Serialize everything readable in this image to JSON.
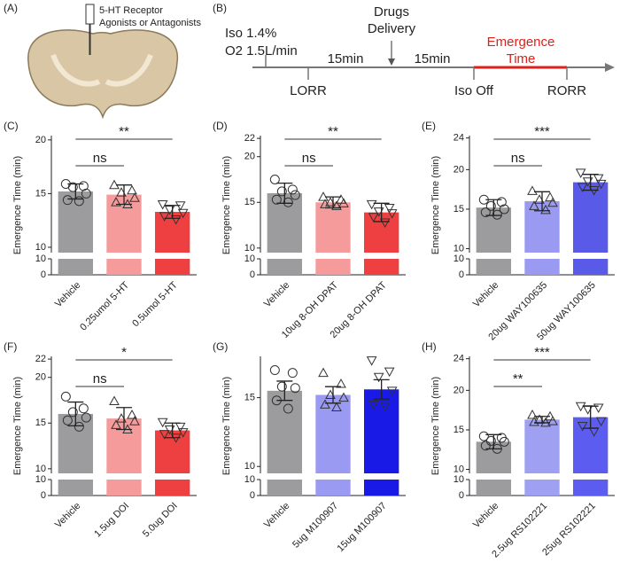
{
  "panel_a": {
    "label": "(A)",
    "caption_line1": "5-HT Receptor",
    "caption_line2": "Agonists or Antagonists"
  },
  "panel_b": {
    "label": "(B)",
    "iso_line1": "Iso 1.4%",
    "iso_line2": "O2 1.5L/min",
    "drugs_line1": "Drugs",
    "drugs_line2": "Delivery",
    "interval1": "15min",
    "interval2": "15min",
    "emergence_line1": "Emergence",
    "emergence_line2": "Time",
    "lorr": "LORR",
    "iso_off": "Iso Off",
    "rorr": "RORR"
  },
  "chart_data": [
    {
      "type": "bar",
      "label": "(C)",
      "ylabel": "Emergence Time (min)",
      "categories": [
        "Vehicle",
        "0.25umol 5-HT",
        "0.5umol 5-HT"
      ],
      "values": [
        15.2,
        14.9,
        13.3
      ],
      "errors": [
        0.7,
        0.9,
        0.6
      ],
      "colors": [
        "#9c9c9e",
        "#f59b9b",
        "#ee4040"
      ],
      "markers": [
        "circle",
        "triangle-up",
        "triangle-down"
      ],
      "points": [
        [
          15.9,
          15.7,
          15.6,
          15.0,
          14.4,
          14.3
        ],
        [
          15.8,
          15.3,
          15.1,
          14.6,
          14.2,
          14.0
        ],
        [
          14.0,
          13.9,
          13.5,
          13.2,
          12.9,
          12.6
        ]
      ],
      "ylim": [
        9.5,
        20.4
      ],
      "yticks": [
        10,
        15,
        20
      ],
      "ylim_lower": [
        0,
        10
      ],
      "yticks_lower": [
        0,
        10
      ],
      "comparisons": [
        {
          "groups": [
            0,
            1
          ],
          "label": "ns"
        },
        {
          "groups": [
            0,
            2
          ],
          "label": "**"
        }
      ]
    },
    {
      "type": "bar",
      "label": "(D)",
      "ylabel": "Emergence Time (min)",
      "categories": [
        "Vehicle",
        "10ug 8-OH DPAT",
        "20ug 8-OH DPAT"
      ],
      "values": [
        16.0,
        15.0,
        13.9
      ],
      "errors": [
        1.1,
        0.6,
        1.0
      ],
      "colors": [
        "#9c9c9e",
        "#f59b9b",
        "#ee4040"
      ],
      "markers": [
        "circle",
        "triangle-up",
        "triangle-down"
      ],
      "points": [
        [
          17.5,
          16.4,
          16.2,
          15.8,
          15.3,
          15.0
        ],
        [
          15.6,
          15.3,
          15.0,
          14.9,
          14.8,
          14.6
        ],
        [
          14.8,
          14.4,
          14.0,
          13.8,
          13.4,
          12.8
        ]
      ],
      "ylim": [
        9.5,
        22.3
      ],
      "yticks": [
        10,
        15,
        20,
        22
      ],
      "ylim_lower": [
        0,
        10
      ],
      "yticks_lower": [
        0,
        10
      ],
      "comparisons": [
        {
          "groups": [
            0,
            1
          ],
          "label": "ns"
        },
        {
          "groups": [
            0,
            2
          ],
          "label": "**"
        }
      ]
    },
    {
      "type": "bar",
      "label": "(E)",
      "ylabel": "Emergence Time (min)",
      "categories": [
        "Vehicle",
        "20ug WAY100635",
        "50ug WAY100635"
      ],
      "values": [
        15.2,
        16.0,
        18.4
      ],
      "errors": [
        1.0,
        1.2,
        1.0
      ],
      "colors": [
        "#9c9c9e",
        "#9a9af2",
        "#5a5ae8"
      ],
      "markers": [
        "circle",
        "triangle-up",
        "triangle-down"
      ],
      "points": [
        [
          16.2,
          15.9,
          15.4,
          15.0,
          14.6,
          14.3
        ],
        [
          17.3,
          16.5,
          16.2,
          15.8,
          15.4,
          14.9
        ],
        [
          19.6,
          18.9,
          18.5,
          18.2,
          17.8,
          17.4
        ]
      ],
      "ylim": [
        9.5,
        24.3
      ],
      "yticks": [
        10,
        15,
        20,
        24
      ],
      "ylim_lower": [
        0,
        10
      ],
      "yticks_lower": [
        0,
        10
      ],
      "comparisons": [
        {
          "groups": [
            0,
            1
          ],
          "label": "ns"
        },
        {
          "groups": [
            0,
            2
          ],
          "label": "***"
        }
      ]
    },
    {
      "type": "bar",
      "label": "(F)",
      "ylabel": "Emergence Time (min)",
      "categories": [
        "Vehicle",
        "1.5ug DOI",
        "5.0ug DOI"
      ],
      "values": [
        16.0,
        15.5,
        14.2
      ],
      "errors": [
        1.3,
        1.2,
        0.8
      ],
      "colors": [
        "#9c9c9e",
        "#f59b9b",
        "#ee4040"
      ],
      "markers": [
        "circle",
        "triangle-up",
        "triangle-down"
      ],
      "points": [
        [
          17.9,
          16.6,
          16.2,
          15.6,
          15.3,
          14.6
        ],
        [
          17.4,
          15.9,
          15.5,
          15.2,
          14.8,
          14.3
        ],
        [
          15.1,
          14.6,
          14.3,
          14.0,
          13.8,
          13.4
        ]
      ],
      "ylim": [
        9.5,
        22.3
      ],
      "yticks": [
        10,
        15,
        20,
        22
      ],
      "ylim_lower": [
        0,
        10
      ],
      "yticks_lower": [
        0,
        10
      ],
      "comparisons": [
        {
          "groups": [
            0,
            1
          ],
          "label": "ns"
        },
        {
          "groups": [
            0,
            2
          ],
          "label": "*"
        }
      ]
    },
    {
      "type": "bar",
      "label": "(G)",
      "ylabel": "Emergence Time (min)",
      "categories": [
        "Vehicle",
        "5ug M100907",
        "15ug M100907"
      ],
      "values": [
        15.5,
        15.2,
        15.6
      ],
      "errors": [
        0.7,
        0.6,
        0.7
      ],
      "colors": [
        "#9c9c9e",
        "#9a9af2",
        "#1a1ae6"
      ],
      "markers": [
        "circle",
        "triangle-up",
        "triangle-down"
      ],
      "points": [
        [
          17.0,
          16.8,
          15.8,
          15.7,
          14.8,
          14.2
        ],
        [
          16.8,
          16.0,
          15.2,
          15.0,
          14.5,
          14.3
        ],
        [
          17.7,
          16.9,
          16.5,
          15.5,
          14.5,
          14.4
        ]
      ],
      "ylim": [
        9.5,
        18
      ],
      "yticks": [
        10,
        15
      ],
      "ylim_lower": [
        0,
        10
      ],
      "yticks_lower": [
        0,
        10
      ],
      "comparisons": []
    },
    {
      "type": "bar",
      "label": "(H)",
      "ylabel": "Emergence Time (min)",
      "categories": [
        "Vehicle",
        "2.5ug RS102221",
        "25ug RS102221"
      ],
      "values": [
        13.5,
        16.3,
        16.6
      ],
      "errors": [
        0.9,
        0.4,
        1.4
      ],
      "colors": [
        "#9c9c9e",
        "#a0a0f2",
        "#5c5cf0"
      ],
      "markers": [
        "circle",
        "triangle-up",
        "triangle-down"
      ],
      "points": [
        [
          14.2,
          14.0,
          13.6,
          13.5,
          13.0,
          12.6
        ],
        [
          16.9,
          16.7,
          16.3,
          16.1,
          16.0,
          15.9
        ],
        [
          18.0,
          17.8,
          17.6,
          16.1,
          15.5,
          14.8
        ]
      ],
      "ylim": [
        9.5,
        24.3
      ],
      "yticks": [
        10,
        15,
        20,
        24
      ],
      "ylim_lower": [
        0,
        10
      ],
      "yticks_lower": [
        0,
        10
      ],
      "comparisons": [
        {
          "groups": [
            0,
            1
          ],
          "label": "**"
        },
        {
          "groups": [
            0,
            2
          ],
          "label": "***"
        }
      ]
    }
  ]
}
